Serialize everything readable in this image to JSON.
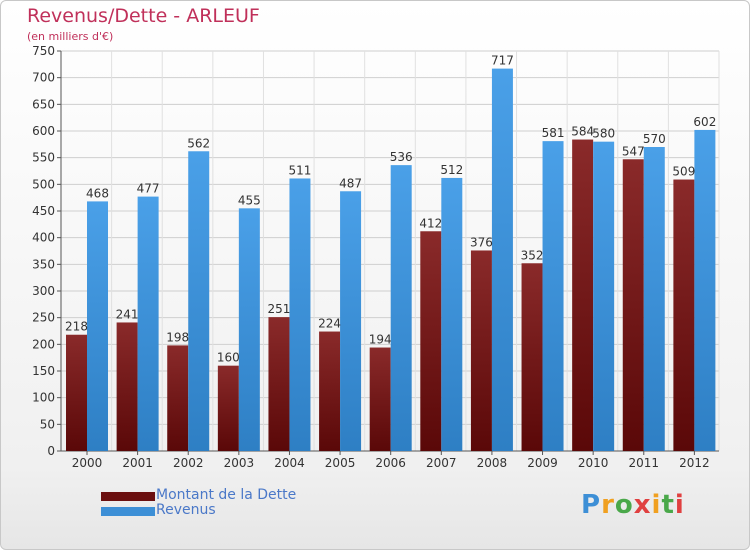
{
  "title": "Revenus/Dette - ARLEUF",
  "subtitle": "(en milliers d'€)",
  "colors": {
    "dette": "#7a1a1a",
    "revenus": "#3d8fd6",
    "title": "#c0305a"
  },
  "legend": [
    {
      "label": "Montant de la Dette",
      "color": "#6b0f0f"
    },
    {
      "label": "Revenus",
      "color": "#3d8fd6"
    }
  ],
  "logo": {
    "text": "Proxiti",
    "icon": "proxiti-logo"
  },
  "chart_data": {
    "type": "bar",
    "categories": [
      "2000",
      "2001",
      "2002",
      "2003",
      "2004",
      "2005",
      "2006",
      "2007",
      "2008",
      "2009",
      "2010",
      "2011",
      "2012"
    ],
    "series": [
      {
        "name": "Montant de la Dette",
        "values": [
          218,
          241,
          198,
          160,
          251,
          224,
          194,
          412,
          376,
          352,
          584,
          547,
          509
        ]
      },
      {
        "name": "Revenus",
        "values": [
          468,
          477,
          562,
          455,
          511,
          487,
          536,
          512,
          717,
          581,
          580,
          570,
          602
        ]
      }
    ],
    "ylim": [
      0,
      750
    ],
    "yticks": [
      0,
      50,
      100,
      150,
      200,
      250,
      300,
      350,
      400,
      450,
      500,
      550,
      600,
      650,
      700,
      750
    ],
    "grid": true,
    "legend_position": "bottom-left"
  }
}
